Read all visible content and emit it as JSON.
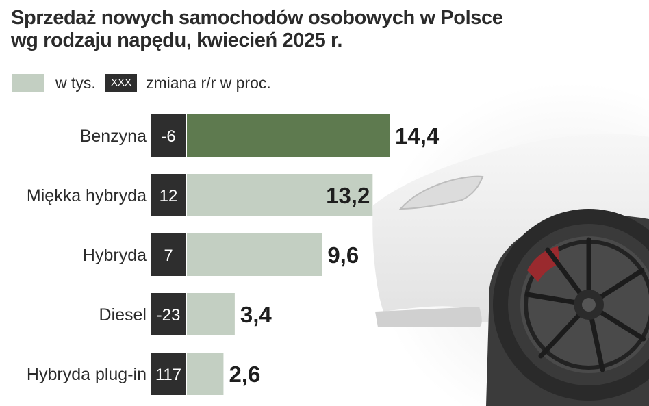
{
  "title_line1": "Sprzedaż nowych samochodów osobowych w Polsce",
  "title_line2": "wg rodzaju napędu, kwiecień 2025 r.",
  "legend": {
    "value_label": "w tys.",
    "change_swatch": "XXX",
    "change_label": "zmiana r/r w proc."
  },
  "colors": {
    "highlight_bar": "#5e7a4f",
    "bar": "#c3cfc2",
    "change_box": "#2e2e2e",
    "text": "#1e1e1e"
  },
  "chart_data": {
    "type": "bar",
    "orientation": "horizontal",
    "categories": [
      "Benzyna",
      "Miękka hybryda",
      "Hybryda",
      "Diesel",
      "Hybryda plug-in"
    ],
    "values": [
      14.4,
      13.2,
      9.6,
      3.4,
      2.6
    ],
    "value_labels": [
      "14,4",
      "13,2",
      "9,6",
      "3,4",
      "2,6"
    ],
    "changes": [
      "-6",
      "12",
      "7",
      "-23",
      "117"
    ],
    "highlight_index": 0,
    "unit": "w tys.",
    "xlim": [
      0,
      14.4
    ]
  }
}
